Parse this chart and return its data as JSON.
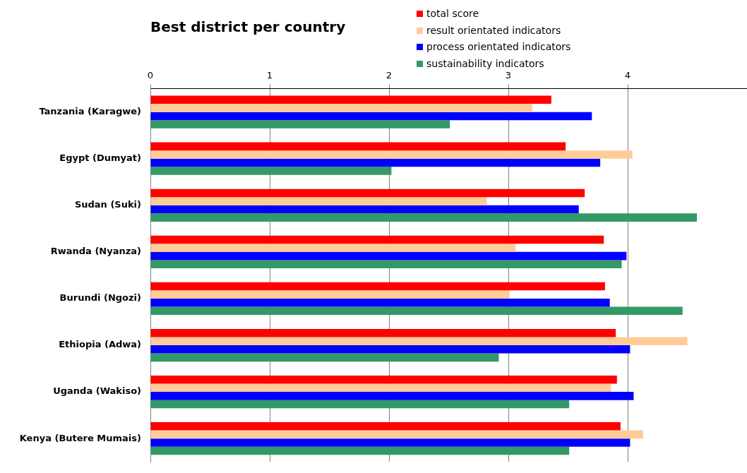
{
  "chart_data": {
    "type": "bar",
    "orientation": "horizontal",
    "title": "Best district per country",
    "categories": [
      "Tanzania (Karagwe)",
      "Egypt (Dumyat)",
      "Sudan (Suki)",
      "Rwanda (Nyanza)",
      "Burundi (Ngozi)",
      "Ethiopia (Adwa)",
      "Uganda (Wakiso)",
      "Kenya (Butere Mumais)"
    ],
    "series": [
      {
        "name": "total score",
        "color": "#ff0000",
        "values": [
          3.36,
          3.48,
          3.64,
          3.8,
          3.81,
          3.9,
          3.91,
          3.94
        ]
      },
      {
        "name": "result orientated indicators",
        "color": "#ffcc99",
        "values": [
          3.2,
          4.04,
          2.82,
          3.06,
          3.01,
          4.5,
          3.86,
          4.13
        ]
      },
      {
        "name": "process orientated indicators",
        "color": "#0000ff",
        "values": [
          3.7,
          3.77,
          3.59,
          3.99,
          3.85,
          4.02,
          4.05,
          4.02
        ]
      },
      {
        "name": "sustainability indicators",
        "color": "#339966",
        "values": [
          2.51,
          2.02,
          4.58,
          3.95,
          4.46,
          2.92,
          3.51,
          3.51
        ]
      }
    ],
    "xlim": [
      0,
      5
    ],
    "xticks": [
      0,
      1,
      2,
      3,
      4
    ],
    "grid": "x",
    "legend": "top"
  }
}
